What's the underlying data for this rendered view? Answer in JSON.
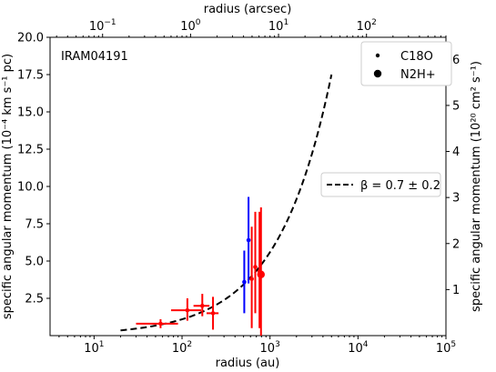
{
  "chart_data": {
    "type": "scatter",
    "annotation": "IRAM04191",
    "xlabel_bottom": "radius (au)",
    "xlabel_top": "radius (arcsec)",
    "ylabel_left": "specific angular momentum (10⁻⁴ km s⁻¹ pc)",
    "ylabel_right": "specific angular momentum (10²⁰ cm² s⁻¹)",
    "x_scale": "log",
    "xlim": [
      3.16,
      100000
    ],
    "ylim": [
      0,
      20
    ],
    "y_ticks_left": [
      {
        "value": 2.5,
        "label": "2.5"
      },
      {
        "value": 5.0,
        "label": "5.0"
      },
      {
        "value": 7.5,
        "label": "7.5"
      },
      {
        "value": 10.0,
        "label": "10.0"
      },
      {
        "value": 12.5,
        "label": "12.5"
      },
      {
        "value": 15.0,
        "label": "15.0"
      },
      {
        "value": 17.5,
        "label": "17.5"
      },
      {
        "value": 20.0,
        "label": "20.0"
      }
    ],
    "y_ticks_right": [
      {
        "value": 1,
        "label": "1"
      },
      {
        "value": 2,
        "label": "2"
      },
      {
        "value": 3,
        "label": "3"
      },
      {
        "value": 4,
        "label": "4"
      },
      {
        "value": 5,
        "label": "5"
      },
      {
        "value": 6,
        "label": "6"
      }
    ],
    "x_ticks_bottom": [
      {
        "value": 10,
        "base": "10",
        "exp": "1"
      },
      {
        "value": 100,
        "base": "10",
        "exp": "2"
      },
      {
        "value": 1000,
        "base": "10",
        "exp": "3"
      },
      {
        "value": 10000,
        "base": "10",
        "exp": "4"
      },
      {
        "value": 100000,
        "base": "10",
        "exp": "5"
      }
    ],
    "x_ticks_top": [
      {
        "value_arcsec": 0.1,
        "base": "10",
        "exp": "−1"
      },
      {
        "value_arcsec": 1,
        "base": "10",
        "exp": "0"
      },
      {
        "value_arcsec": 10,
        "base": "10",
        "exp": "1"
      },
      {
        "value_arcsec": 100,
        "base": "10",
        "exp": "2"
      }
    ],
    "legend": [
      {
        "label": "C18O",
        "marker": "small-dot"
      },
      {
        "label": "N2H+",
        "marker": "large-dot"
      }
    ],
    "fit_legend": {
      "prefix": "β = 0.7 ± 0.2",
      "linestyle": "dashed"
    },
    "fit_curve": {
      "x_range": [
        20,
        5000
      ],
      "beta": 0.7,
      "y_at_5000": 17.5
    },
    "series": [
      {
        "colors": {
          "C18O": "#0000ff",
          "N2H+": "#ff0000"
        },
        "points": [
          {
            "x": 57,
            "y": 0.8,
            "xerr": [
              30,
              90
            ],
            "yerr": [
              0.5,
              1.1
            ],
            "color": "#ff0000",
            "marker": "small"
          },
          {
            "x": 115,
            "y": 1.7,
            "xerr": [
              75,
              165
            ],
            "yerr": [
              1.0,
              2.5
            ],
            "color": "#ff0000",
            "marker": "small"
          },
          {
            "x": 170,
            "y": 2.0,
            "xerr": [
              135,
              205
            ],
            "yerr": [
              1.3,
              2.8
            ],
            "color": "#ff0000",
            "marker": "small"
          },
          {
            "x": 225,
            "y": 1.5,
            "xerr": [
              190,
              260
            ],
            "yerr": [
              0.4,
              2.6
            ],
            "color": "#ff0000",
            "marker": "small"
          },
          {
            "x": 510,
            "y": 3.6,
            "xerr": [
              490,
              530
            ],
            "yerr": [
              1.5,
              5.7
            ],
            "color": "#0000ff",
            "marker": "small"
          },
          {
            "x": 570,
            "y": 6.4,
            "xerr": [
              560,
              580
            ],
            "yerr": [
              3.5,
              9.3
            ],
            "color": "#0000ff",
            "marker": "small"
          },
          {
            "x": 620,
            "y": 3.8,
            "yerr": [
              0.5,
              7.3
            ],
            "color": "#ff0000",
            "marker": "small"
          },
          {
            "x": 680,
            "y": 4.6,
            "yerr": [
              1.5,
              8.3
            ],
            "color": "#ff0000",
            "marker": "small"
          },
          {
            "x": 760,
            "y": 4.3,
            "yerr": [
              0.5,
              8.3
            ],
            "color": "#ff0000",
            "marker": "small"
          },
          {
            "x": 790,
            "y": 4.1,
            "yerr": [
              0.0,
              8.6
            ],
            "color": "#ff0000",
            "marker": "large"
          }
        ]
      }
    ]
  }
}
